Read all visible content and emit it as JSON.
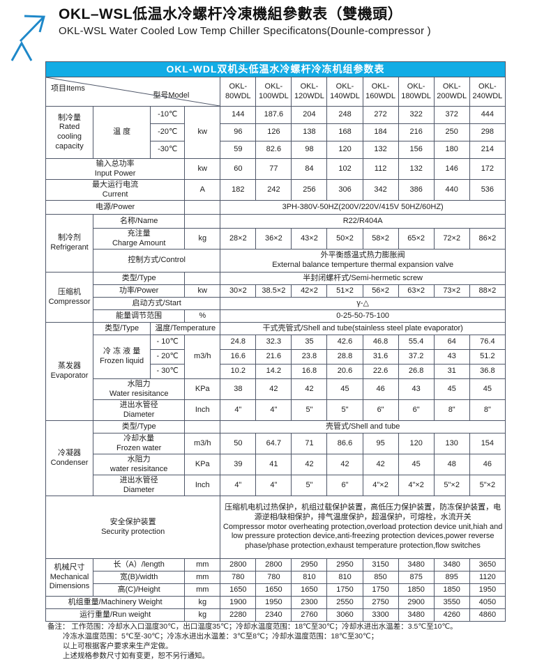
{
  "page": {
    "title_cn": "OKL–WSL低温水冷螺杆冷凍機組參數表（雙機頭）",
    "title_en": "OKL-WSL Water Cooled Low Temp Chiller Specificatons(Dounle-compressor )"
  },
  "colors": {
    "accent_blue": "#12ace5",
    "cell_gray": "#d3d3d3",
    "border": "#4e5668",
    "arrow_blue": "#1e88c9"
  },
  "table": {
    "caption": "OKL-WDL双机头低温水冷螺杆冷冻机组参数表",
    "corner": {
      "items": "项目Items",
      "model": "型号Model"
    },
    "model_headers": [
      "OKL-\n80WDL",
      "OKL-\n100WDL",
      "OKL-\n120WDL",
      "OKL-\n140WDL",
      "OKL-\n160WDL",
      "OKL-\n180WDL",
      "OKL-\n200WDL",
      "OKL-\n240WDL"
    ],
    "capacity": {
      "label": "制冷量\nRated\ncooling\ncapacity",
      "temp_label": "温 度",
      "unit": "kw",
      "t10": {
        "label": "-10℃",
        "v": [
          "144",
          "187.6",
          "204",
          "248",
          "272",
          "322",
          "372",
          "444"
        ]
      },
      "t20": {
        "label": "-20℃",
        "v": [
          "96",
          "126",
          "138",
          "168",
          "184",
          "216",
          "250",
          "298"
        ]
      },
      "t30": {
        "label": "-30℃",
        "v": [
          "59",
          "82.6",
          "98",
          "120",
          "132",
          "156",
          "180",
          "214"
        ]
      }
    },
    "input_power": {
      "label": "输入总功率\nInput Power",
      "unit": "kw",
      "v": [
        "60",
        "77",
        "84",
        "102",
        "112",
        "132",
        "146",
        "172"
      ]
    },
    "current": {
      "label": "最大运行电流\nCurrent",
      "unit": "A",
      "v": [
        "182",
        "242",
        "256",
        "306",
        "342",
        "386",
        "440",
        "536"
      ]
    },
    "power": {
      "label": "电源/Power",
      "value": "3PH-380V-50HZ(200V/220V/415V  50HZ/60HZ)"
    },
    "refrigerant": {
      "label": "制冷剂\nRefrigerant",
      "name": {
        "label": "名称/Name",
        "value": "R22/R404A"
      },
      "charge": {
        "label": "充注量\nCharge Amount",
        "unit": "kg",
        "v": [
          "28×2",
          "36×2",
          "43×2",
          "50×2",
          "58×2",
          "65×2",
          "72×2",
          "86×2"
        ]
      },
      "control": {
        "label": "控制方式/Control",
        "value": "外平衡感温式热力膨胀阀\nExternal balance temperture thermal expansion valve"
      }
    },
    "compressor": {
      "label": "压缩机\nCompressor",
      "type": {
        "label": "类型/Type",
        "value": "半封闭螺杆式/Semi-hermetic screw"
      },
      "power": {
        "label": "功率/Power",
        "unit": "kw",
        "v": [
          "30×2",
          "38.5×2",
          "42×2",
          "51×2",
          "56×2",
          "63×2",
          "73×2",
          "88×2"
        ]
      },
      "start": {
        "label": "启动方式/Start",
        "value": "γ-△"
      },
      "range": {
        "label": "能量调节范围",
        "unit": "%",
        "value": "0-25-50-75-100"
      }
    },
    "evaporator": {
      "label": "蒸发器\nEvaporator",
      "type": {
        "label": "类型/Type",
        "temp": "温度/Temperature",
        "value": "干式壳管式/Shell and tube(stainless steel plate evaporator)"
      },
      "frozen": {
        "label": "冷 冻 液 量\nFrozen liquid",
        "unit": "m3/h",
        "t10": {
          "label": "- 10℃",
          "v": [
            "24.8",
            "32.3",
            "35",
            "42.6",
            "46.8",
            "55.4",
            "64",
            "76.4"
          ]
        },
        "t20": {
          "label": "- 20℃",
          "v": [
            "16.6",
            "21.6",
            "23.8",
            "28.8",
            "31.6",
            "37.2",
            "43",
            "51.2"
          ]
        },
        "t30": {
          "label": "- 30℃",
          "v": [
            "10.2",
            "14.2",
            "16.8",
            "20.6",
            "22.6",
            "26.8",
            "31",
            "36.8"
          ]
        }
      },
      "resistance": {
        "label": "水阻力\nWater resisitance",
        "unit": "KPa",
        "v": [
          "38",
          "42",
          "42",
          "45",
          "46",
          "43",
          "45",
          "45"
        ]
      },
      "diameter": {
        "label": "进出水管径\nDiameter",
        "unit": "Inch",
        "v": [
          "4\"",
          "4\"",
          "5\"",
          "5\"",
          "6\"",
          "6\"",
          "8\"",
          "8\""
        ]
      }
    },
    "condenser": {
      "label": "冷凝器\nCondenser",
      "type": {
        "label": "类型/Type",
        "value": "壳管式/Shell and tube"
      },
      "water": {
        "label": "冷却水量\nFrozen water",
        "unit": "m3/h",
        "v": [
          "50",
          "64.7",
          "71",
          "86.6",
          "95",
          "120",
          "130",
          "154"
        ]
      },
      "resistance": {
        "label": "水阻力\nwater resisitance",
        "unit": "KPa",
        "v": [
          "39",
          "41",
          "42",
          "42",
          "42",
          "45",
          "48",
          "46"
        ]
      },
      "diameter": {
        "label": "进出水管径\nDiameter",
        "unit": "Inch",
        "v": [
          "4\"",
          "4\"",
          "5\"",
          "6\"",
          "4\"×2",
          "4\"×2",
          "5\"×2",
          "5\"×2"
        ]
      }
    },
    "security": {
      "label": "安全保护装置\nSecurity protection",
      "value_cn": "压缩机电机过热保护，机组过载保护装置，高低压力保护装置，防冻保护装置，电源逆相/缺相保护，排气温度保护，超温保护，可熔栓，水流开关",
      "value_en": "Compressor motor overheating protection,overload protection device unit,hiah and low pressure protection device,anti-freezing protection devices,power reverse phase/phase protection,exhaust temperature protection,flow switches"
    },
    "dimensions": {
      "label": "机械尺寸\nMechanical\nDimensions",
      "length": {
        "label": "长（A）/length",
        "unit": "mm",
        "v": [
          "2800",
          "2800",
          "2950",
          "2950",
          "3150",
          "3480",
          "3480",
          "3650"
        ]
      },
      "width": {
        "label": "宽(B)/width",
        "unit": "mm",
        "v": [
          "780",
          "780",
          "810",
          "810",
          "850",
          "875",
          "895",
          "1120"
        ]
      },
      "height": {
        "label": "高(C)/Height",
        "unit": "mm",
        "v": [
          "1650",
          "1650",
          "1650",
          "1750",
          "1750",
          "1850",
          "1850",
          "1950"
        ]
      }
    },
    "machinery_weight": {
      "label": "机组重量/Machinery Weight",
      "unit": "kg",
      "v": [
        "1900",
        "1950",
        "2300",
        "2550",
        "2750",
        "2900",
        "3550",
        "4050"
      ]
    },
    "run_weight": {
      "label": "运行重量/Run weight",
      "unit": "kg",
      "v": [
        "2280",
        "2340",
        "2760",
        "3060",
        "3300",
        "3480",
        "4260",
        "4860"
      ]
    }
  },
  "notes": {
    "line1": "备注：  工作范围：冷却水入口温度30℃，出口温度35℃；冷却水温度范围：18℃至30℃；冷却水进出水温差：3.5℃至10℃。",
    "line2": "冷冻水温度范围：5℃至-30℃；冷冻水进出水温差：3℃至8℃；冷却水温度范围：18℃至30℃；",
    "line3": "以上可根据客户要求来生产定做。",
    "line4": "上述规格参数尺寸如有变更，恕不另行通知。"
  }
}
